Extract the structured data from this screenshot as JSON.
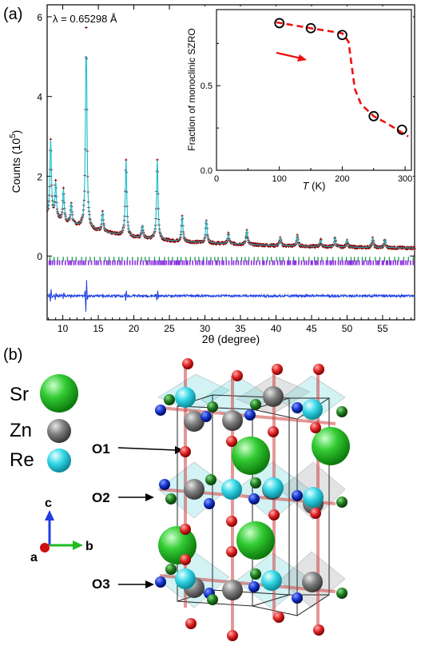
{
  "panels": {
    "a": {
      "label": "(a)",
      "wavelength": "λ = 0.65298 Å"
    },
    "b": {
      "label": "(b)"
    }
  },
  "colors": {
    "observed": "#8b0000",
    "calc": "#17becf",
    "difference": "#1f3fe0",
    "ticks_phase1": "#1a9a4a",
    "ticks_phase2": "#8a2be2",
    "inset_curve": "#ee1111",
    "sr": "#33cc33",
    "zn": "#7f7f7f",
    "re": "#33d6e6",
    "oxygen_red": "#dd2222",
    "oxygen_blue": "#1133cc",
    "oxygen_green": "#1e7a1e",
    "octahedron": "#5fd0d8"
  },
  "chart_data": [
    {
      "type": "scatter",
      "title": "",
      "xlabel": "2θ (degree)",
      "ylabel": "Counts (10^5)",
      "xlim": [
        7.8,
        59.5
      ],
      "ylim": [
        -1.6,
        6.3
      ],
      "x_ticks": [
        10,
        15,
        20,
        25,
        30,
        35,
        40,
        45,
        50,
        55
      ],
      "y_ticks": [
        0,
        2,
        4,
        6
      ],
      "background": {
        "x": [
          8,
          10,
          15,
          20,
          25,
          30,
          40,
          50,
          59.5
        ],
        "y": [
          1.0,
          0.85,
          0.62,
          0.47,
          0.38,
          0.33,
          0.26,
          0.22,
          0.2
        ]
      },
      "peaks": [
        {
          "x": 8.3,
          "y": 2.9
        },
        {
          "x": 9.0,
          "y": 1.8
        },
        {
          "x": 10.1,
          "y": 1.65
        },
        {
          "x": 11.2,
          "y": 1.3
        },
        {
          "x": 13.3,
          "y": 5.7
        },
        {
          "x": 15.6,
          "y": 1.1
        },
        {
          "x": 18.9,
          "y": 2.4
        },
        {
          "x": 21.2,
          "y": 0.75
        },
        {
          "x": 23.3,
          "y": 2.4
        },
        {
          "x": 26.8,
          "y": 1.0
        },
        {
          "x": 30.2,
          "y": 0.9
        },
        {
          "x": 33.3,
          "y": 0.55
        },
        {
          "x": 35.9,
          "y": 0.65
        },
        {
          "x": 40.6,
          "y": 0.45
        },
        {
          "x": 43.0,
          "y": 0.5
        },
        {
          "x": 46.3,
          "y": 0.4
        },
        {
          "x": 48.3,
          "y": 0.45
        },
        {
          "x": 50.0,
          "y": 0.4
        },
        {
          "x": 53.6,
          "y": 0.45
        },
        {
          "x": 55.3,
          "y": 0.4
        }
      ],
      "calc_peak": {
        "x": 13.3,
        "y": 5.0
      },
      "bragg_ticks_phase1_y": -0.08,
      "bragg_ticks_phase2_y": -0.17,
      "difference_offset": -1.0
    },
    {
      "type": "line",
      "title": "",
      "xlabel": "T (K)",
      "ylabel": "Fraction of monoclinic SZRO",
      "xlim": [
        0,
        310
      ],
      "ylim": [
        0,
        0.95
      ],
      "x_ticks": [
        0,
        100,
        200,
        300
      ],
      "y_ticks": [
        0.0,
        0.5
      ],
      "points": [
        {
          "x": 100,
          "y": 0.87
        },
        {
          "x": 150,
          "y": 0.84
        },
        {
          "x": 200,
          "y": 0.8
        },
        {
          "x": 250,
          "y": 0.32
        },
        {
          "x": 295,
          "y": 0.24
        }
      ],
      "fit_curve": [
        {
          "x": 95,
          "y": 0.875
        },
        {
          "x": 150,
          "y": 0.84
        },
        {
          "x": 200,
          "y": 0.81
        },
        {
          "x": 210,
          "y": 0.76
        },
        {
          "x": 215,
          "y": 0.62
        },
        {
          "x": 220,
          "y": 0.48
        },
        {
          "x": 230,
          "y": 0.39
        },
        {
          "x": 250,
          "y": 0.32
        },
        {
          "x": 270,
          "y": 0.28
        },
        {
          "x": 305,
          "y": 0.2
        }
      ]
    }
  ],
  "legend": {
    "sr": "Sr",
    "zn": "Zn",
    "re": "Re"
  },
  "oxygen_labels": [
    "O1",
    "O2",
    "O3"
  ],
  "axes_labels": {
    "c": "c",
    "a": "a",
    "b": "b"
  }
}
